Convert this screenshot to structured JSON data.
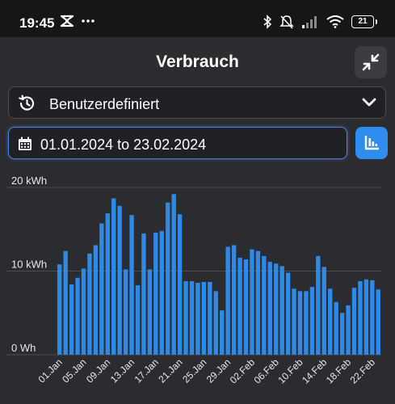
{
  "status_bar": {
    "time": "19:45",
    "battery_level": "21",
    "icons": [
      "app-notification-icon",
      "more-icon",
      "bluetooth-icon",
      "mute-icon",
      "signal-icon",
      "wifi-icon",
      "battery-icon"
    ]
  },
  "header": {
    "title": "Verbrauch",
    "collapse_icon": "collapse-icon"
  },
  "period_select": {
    "selected": "Benutzerdefiniert",
    "icon": "history-icon",
    "chevron": "chevron-down-icon"
  },
  "date_range": {
    "value": "01.01.2024 to 23.02.2024",
    "icon": "calendar-icon"
  },
  "chart_type_button": {
    "icon": "bar-chart-icon",
    "color": "#2d8ef0"
  },
  "chart_data": {
    "type": "bar",
    "bar_color": "#2e8ae6",
    "ylabel_unit": "kWh",
    "ylim": [
      0,
      20
    ],
    "y_ticks": [
      {
        "value": 0,
        "label": "0 Wh"
      },
      {
        "value": 10,
        "label": "10 kWh"
      },
      {
        "value": 20,
        "label": "20 kWh"
      }
    ],
    "grid": true,
    "categories": [
      "01.Jan",
      "02.Jan",
      "03.Jan",
      "04.Jan",
      "05.Jan",
      "06.Jan",
      "07.Jan",
      "08.Jan",
      "09.Jan",
      "10.Jan",
      "11.Jan",
      "12.Jan",
      "13.Jan",
      "14.Jan",
      "15.Jan",
      "16.Jan",
      "17.Jan",
      "18.Jan",
      "19.Jan",
      "20.Jan",
      "21.Jan",
      "22.Jan",
      "23.Jan",
      "24.Jan",
      "25.Jan",
      "26.Jan",
      "27.Jan",
      "28.Jan",
      "29.Jan",
      "30.Jan",
      "31.Jan",
      "01.Feb",
      "02.Feb",
      "03.Feb",
      "04.Feb",
      "05.Feb",
      "06.Feb",
      "07.Feb",
      "08.Feb",
      "09.Feb",
      "10.Feb",
      "11.Feb",
      "12.Feb",
      "13.Feb",
      "14.Feb",
      "15.Feb",
      "16.Feb",
      "17.Feb",
      "18.Feb",
      "19.Feb",
      "20.Feb",
      "21.Feb",
      "22.Feb",
      "23.Feb"
    ],
    "x_tick_labels": [
      "01.Jan",
      "05.Jan",
      "09.Jan",
      "13.Jan",
      "17.Jan",
      "21.Jan",
      "25.Jan",
      "29.Jan",
      "02.Feb",
      "06.Feb",
      "10.Feb",
      "14.Feb",
      "18.Feb",
      "22.Feb"
    ],
    "values": [
      10.8,
      12.4,
      8.4,
      9.2,
      10.3,
      12.1,
      13.1,
      15.7,
      16.9,
      18.7,
      17.8,
      10.2,
      16.7,
      8.3,
      14.5,
      10.2,
      14.6,
      14.8,
      18.2,
      19.2,
      16.8,
      8.8,
      8.8,
      8.6,
      8.7,
      8.7,
      7.6,
      5.3,
      12.9,
      13.1,
      11.6,
      11.4,
      12.6,
      12.4,
      11.8,
      11.1,
      10.9,
      10.6,
      9.8,
      7.9,
      7.6,
      7.6,
      8.1,
      11.8,
      10.5,
      7.9,
      6.3,
      5.0,
      5.9,
      8.0,
      8.8,
      9.0,
      8.9,
      7.8
    ]
  }
}
